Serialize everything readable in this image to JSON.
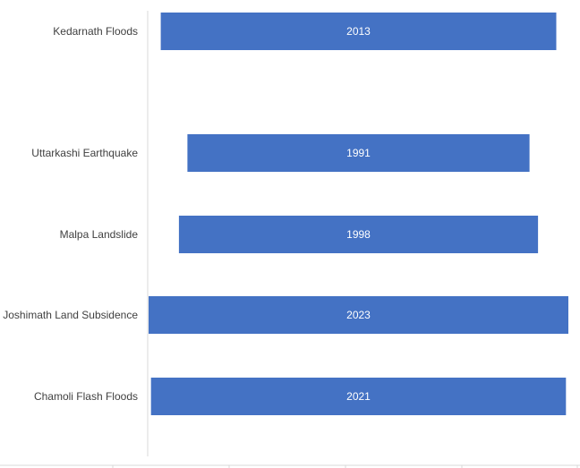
{
  "chart_data": {
    "type": "bar",
    "orientation": "horizontal",
    "categories": [
      "Kedarnath Floods",
      "Uttarkashi Earthquake",
      "Malpa Landslide",
      "Joshimath Land Subsidence",
      "Chamoli Flash Floods"
    ],
    "values": [
      2013,
      1991,
      1998,
      2023,
      2021
    ],
    "data_labels": [
      "2013",
      "1991",
      "1998",
      "2023",
      "2021"
    ],
    "title": "",
    "xlabel": "",
    "ylabel": "",
    "grid": false,
    "legend": "none",
    "colors": {
      "bar": "#4472C4",
      "bar_label": "#FFFFFF",
      "category_label": "#404040",
      "axis": "#D9D9D9"
    }
  }
}
